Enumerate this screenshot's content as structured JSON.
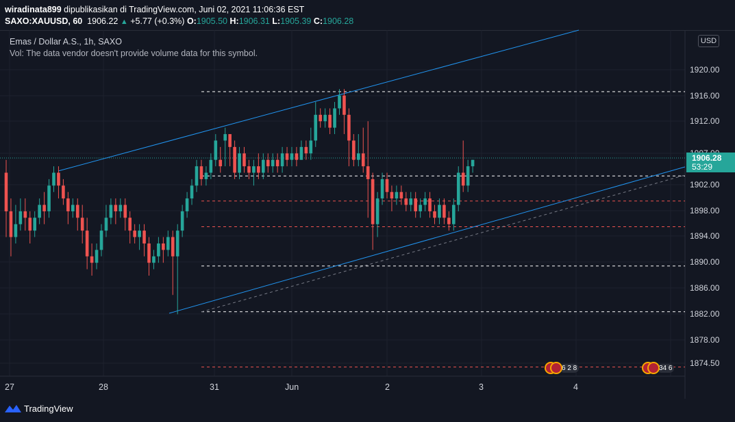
{
  "header": {
    "author": "wiradinata899",
    "published": " dipublikasikan di TradingView.com, Juni 02, 2021 11:06:36 EST",
    "symbol": "SAXO:XAUUSD, 60",
    "last": "1906.22",
    "change": "+5.77 (+0.3%)",
    "o_label": "O:",
    "o_val": "1905.50",
    "h_label": "H:",
    "h_val": "1906.31",
    "l_label": "L:",
    "l_val": "1905.39",
    "c_label": "C:",
    "c_val": "1906.28"
  },
  "legend": {
    "title": "Emas / Dollar A.S., 1h, SAXO",
    "vol": "Vol: The data vendor doesn't provide volume data for this symbol."
  },
  "price_axis": {
    "currency": "USD",
    "last_price": "1906.28",
    "countdown": "53:29",
    "ticks": [
      "1920.00",
      "1916.00",
      "1912.00",
      "1907.00",
      "1902.00",
      "1898.00",
      "1894.00",
      "1890.00",
      "1886.00",
      "1882.00",
      "1878.00",
      "1874.50"
    ]
  },
  "time_axis": {
    "labels": [
      "27",
      "28",
      "31",
      "Jun",
      "2",
      "3",
      "4"
    ]
  },
  "events": [
    {
      "text": "6 2 8"
    },
    {
      "text": "34 6"
    }
  ],
  "footer": {
    "brand": "TradingView"
  },
  "colors": {
    "bg": "#131722",
    "up": "#26a69a",
    "down": "#ef5350",
    "trend": "#2196f3",
    "level_white": "#ffffff",
    "level_red": "#ef5350"
  },
  "chart_data": {
    "type": "candlestick",
    "title": "Emas / Dollar A.S., 1h, SAXO",
    "ylim": [
      1873,
      1923
    ],
    "price_levels": [
      {
        "price": 1916.6,
        "color": "white"
      },
      {
        "price": 1903.5,
        "color": "white"
      },
      {
        "price": 1899.6,
        "color": "red"
      },
      {
        "price": 1895.6,
        "color": "red"
      },
      {
        "price": 1889.5,
        "color": "white"
      },
      {
        "price": 1882.4,
        "color": "white"
      },
      {
        "price": 1873.8,
        "color": "red"
      }
    ],
    "dotted_last_price": 1906.28
  }
}
